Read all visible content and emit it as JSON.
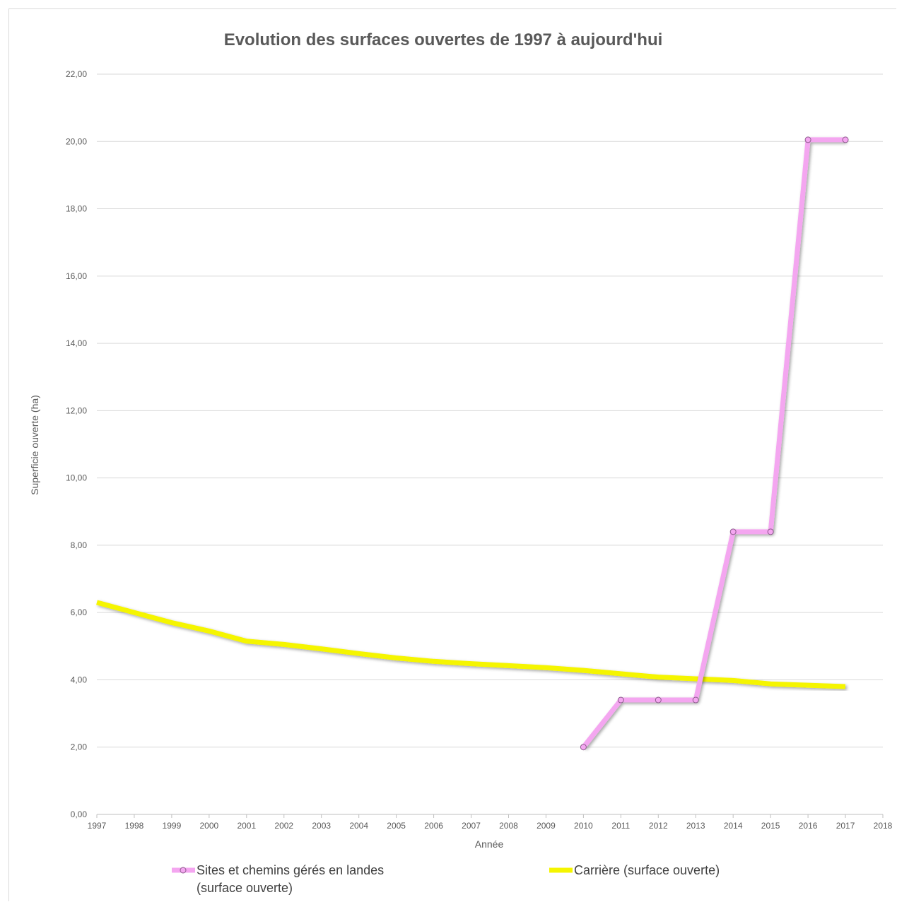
{
  "chart_data": {
    "type": "line",
    "title": "Evolution des surfaces ouvertes de 1997 à aujourd'hui",
    "xlabel": "Année",
    "ylabel": "Superficie ouverte (ha)",
    "xlim": [
      1997,
      2018
    ],
    "ylim": [
      0,
      22
    ],
    "x_ticks": [
      1997,
      1998,
      1999,
      2000,
      2001,
      2002,
      2003,
      2004,
      2005,
      2006,
      2007,
      2008,
      2009,
      2010,
      2011,
      2012,
      2013,
      2014,
      2015,
      2016,
      2017,
      2018
    ],
    "y_ticks": [
      "0,00",
      "2,00",
      "4,00",
      "6,00",
      "8,00",
      "10,00",
      "12,00",
      "14,00",
      "16,00",
      "18,00",
      "20,00",
      "22,00"
    ],
    "grid": true,
    "legend_position": "bottom",
    "series": [
      {
        "name": "Sites et chemins gérés en landes (surface ouverte)",
        "legend_lines": [
          "Sites et chemins gérés en landes",
          "(surface ouverte)"
        ],
        "color": "#f4a6f0",
        "marker": "circle",
        "x": [
          2010,
          2011,
          2012,
          2013,
          2014,
          2015,
          2016,
          2017
        ],
        "y": [
          2.0,
          3.4,
          3.4,
          3.4,
          8.4,
          8.4,
          20.05,
          20.05
        ]
      },
      {
        "name": "Carrière (surface ouverte)",
        "legend_lines": [
          "Carrière (surface ouverte)"
        ],
        "color": "#f5f500",
        "marker": "none",
        "x": [
          1997,
          1998,
          1999,
          2000,
          2001,
          2002,
          2003,
          2004,
          2005,
          2006,
          2007,
          2008,
          2009,
          2010,
          2011,
          2012,
          2013,
          2014,
          2015,
          2016,
          2017
        ],
        "y": [
          6.3,
          6.0,
          5.7,
          5.45,
          5.15,
          5.05,
          4.92,
          4.78,
          4.65,
          4.55,
          4.48,
          4.42,
          4.36,
          4.28,
          4.18,
          4.08,
          4.03,
          3.98,
          3.88,
          3.84,
          3.8
        ]
      }
    ]
  }
}
